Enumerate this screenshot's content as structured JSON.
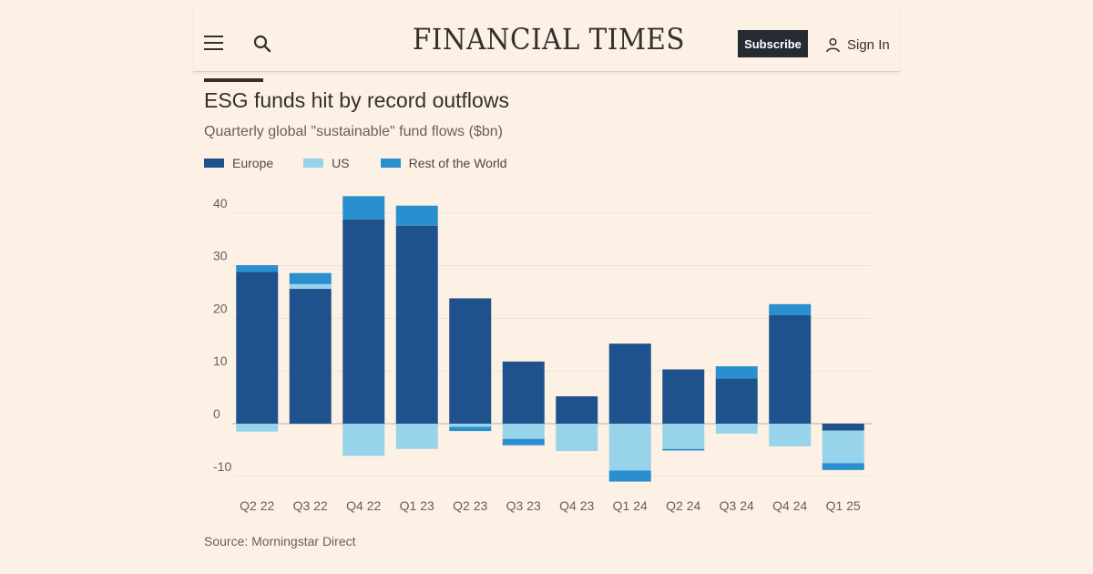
{
  "header": {
    "masthead": "FINANCIAL TIMES",
    "subscribe_label": "Subscribe",
    "sign_in_label": "Sign In"
  },
  "colors": {
    "background": "#fdf1e5",
    "europe": "#1f528c",
    "us": "#97d3ea",
    "rest_of_world": "#2a8fcf",
    "subscribe_bg": "#262a33"
  },
  "chart_data": {
    "type": "bar",
    "stacked": true,
    "title": "ESG funds hit by record outflows",
    "subtitle": "Quarterly global \"sustainable\" fund flows ($bn)",
    "categories": [
      "Q2 22",
      "Q3 22",
      "Q4 22",
      "Q1 23",
      "Q2 23",
      "Q3 23",
      "Q4 23",
      "Q1 24",
      "Q2 24",
      "Q3 24",
      "Q4 24",
      "Q1 25"
    ],
    "series": [
      {
        "name": "Europe",
        "color": "#1f528c",
        "values": [
          28.8,
          25.6,
          38.8,
          37.6,
          23.8,
          11.8,
          5.2,
          15.2,
          10.3,
          8.6,
          20.6,
          -1.3
        ]
      },
      {
        "name": "US",
        "color": "#97d3ea",
        "values": [
          -1.5,
          0.9,
          -6.1,
          -4.8,
          -0.6,
          -2.9,
          -5.2,
          -8.9,
          -4.8,
          -1.9,
          -4.3,
          -6.2
        ]
      },
      {
        "name": "Rest of the World",
        "color": "#2a8fcf",
        "values": [
          1.3,
          2.1,
          4.4,
          3.8,
          -0.8,
          -1.2,
          0.0,
          -2.1,
          -0.3,
          2.3,
          2.1,
          -1.3
        ]
      }
    ],
    "yticks": [
      -10,
      0,
      10,
      20,
      30,
      40
    ],
    "ytick_labels": [
      "-10",
      "0",
      "10",
      "20",
      "30",
      "40"
    ],
    "ylim": [
      -13,
      43
    ],
    "xlabel": "",
    "ylabel": "",
    "legend_position": "top-left",
    "source": "Source: Morningstar Direct"
  }
}
